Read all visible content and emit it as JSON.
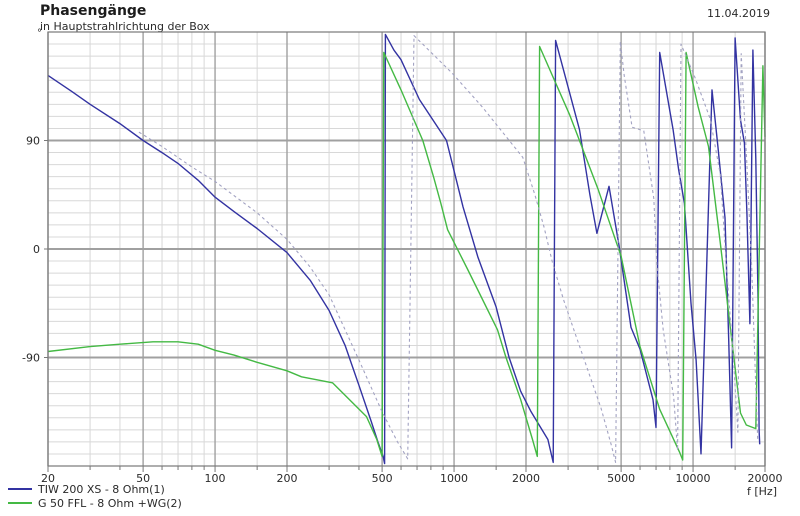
{
  "header": {
    "title": "Phasengänge",
    "subtitle": "in Hauptstrahlrichtung der Box",
    "date": "11.04.2019"
  },
  "legend": [
    {
      "label": "TIW 200 XS - 8 Ohm(1)",
      "color": "#3333a2",
      "style": "solid"
    },
    {
      "label": "G 50 FFL - 8 Ohm +WG(2)",
      "color": "#44b944",
      "style": "solid"
    }
  ],
  "colors": {
    "background": "#ffffff",
    "frame": "#787878",
    "grid_major": "#a0a0a0",
    "grid_minor": "#d8d8d8",
    "text": "#2a2a2a",
    "curve_blue": "#3333a2",
    "curve_green": "#44b944",
    "curve_dashed": "#a2a2c2"
  },
  "chart_data": {
    "type": "line",
    "title": "Phasengänge",
    "subtitle": "in Hauptstrahlrichtung der Box",
    "xlabel": "f [Hz]",
    "ylabel_unit": "°",
    "x_scale": "log",
    "xlim": [
      20,
      20000
    ],
    "ylim": [
      -180,
      180
    ],
    "grid": true,
    "y_major_lines": [
      90,
      0,
      -90
    ],
    "y_minor_step": 10,
    "y_tick_labels": [
      {
        "value": 90,
        "label": "90"
      },
      {
        "value": 0,
        "label": "0"
      },
      {
        "value": -90,
        "label": "-90"
      }
    ],
    "x_major_ticks": [
      {
        "f": 20,
        "label": "20"
      },
      {
        "f": 50,
        "label": "50"
      },
      {
        "f": 100,
        "label": "100"
      },
      {
        "f": 200,
        "label": "200"
      },
      {
        "f": 500,
        "label": "500"
      },
      {
        "f": 1000,
        "label": "1000"
      },
      {
        "f": 2000,
        "label": "2000"
      },
      {
        "f": 5000,
        "label": "5000"
      },
      {
        "f": 10000,
        "label": "10000"
      },
      {
        "f": 20000,
        "label": "20000"
      }
    ],
    "x_minor_ticks": [
      30,
      40,
      60,
      70,
      80,
      90,
      150,
      300,
      400,
      600,
      700,
      800,
      900,
      1500,
      3000,
      4000,
      6000,
      7000,
      8000,
      9000,
      15000
    ],
    "legend_position": "bottom-left",
    "series": [
      {
        "name": "TIW 200 XS - 8 Ohm(1)",
        "color": "#3333a2",
        "dash": "solid",
        "points": [
          [
            20,
            144
          ],
          [
            25,
            131
          ],
          [
            30,
            120
          ],
          [
            40,
            104
          ],
          [
            50,
            90
          ],
          [
            60,
            80
          ],
          [
            70,
            71
          ],
          [
            85,
            57
          ],
          [
            100,
            43
          ],
          [
            120,
            31
          ],
          [
            150,
            17
          ],
          [
            200,
            -3
          ],
          [
            250,
            -26
          ],
          [
            300,
            -51
          ],
          [
            350,
            -80
          ],
          [
            400,
            -113
          ],
          [
            450,
            -143
          ],
          [
            480,
            -160
          ],
          [
            505,
            -172
          ],
          [
            512,
            -178
          ],
          [
            516,
            178
          ],
          [
            560,
            165
          ],
          [
            600,
            157
          ],
          [
            716,
            124
          ],
          [
            930,
            90
          ],
          [
            1090,
            35
          ],
          [
            1260,
            -7
          ],
          [
            1500,
            -48
          ],
          [
            1700,
            -90
          ],
          [
            1900,
            -118
          ],
          [
            2100,
            -135
          ],
          [
            2470,
            -158
          ],
          [
            2600,
            -177
          ],
          [
            2660,
            173
          ],
          [
            3350,
            99
          ],
          [
            3700,
            45
          ],
          [
            3960,
            13
          ],
          [
            4450,
            52
          ],
          [
            4900,
            3
          ],
          [
            5500,
            -65
          ],
          [
            6000,
            -83
          ],
          [
            6800,
            -125
          ],
          [
            7000,
            -148
          ],
          [
            7250,
            163
          ],
          [
            8250,
            99
          ],
          [
            8700,
            66
          ],
          [
            9200,
            38
          ],
          [
            9800,
            -45
          ],
          [
            10300,
            -92
          ],
          [
            10800,
            -170
          ],
          [
            12000,
            132
          ],
          [
            12700,
            85
          ],
          [
            13600,
            26
          ],
          [
            14100,
            -75
          ],
          [
            14500,
            -165
          ],
          [
            15000,
            175
          ],
          [
            15800,
            107
          ],
          [
            16400,
            88
          ],
          [
            16800,
            30
          ],
          [
            17100,
            -25
          ],
          [
            17300,
            -62
          ],
          [
            17800,
            165
          ],
          [
            18300,
            75
          ],
          [
            18700,
            -40
          ],
          [
            18900,
            -150
          ],
          [
            19000,
            -162
          ]
        ]
      },
      {
        "name": "G 50 FFL - 8 Ohm +WG(2)",
        "color": "#44b944",
        "dash": "solid",
        "points": [
          [
            20,
            -85
          ],
          [
            30,
            -81
          ],
          [
            40,
            -79
          ],
          [
            55,
            -77
          ],
          [
            70,
            -77
          ],
          [
            85,
            -79
          ],
          [
            100,
            -84
          ],
          [
            120,
            -88
          ],
          [
            150,
            -94
          ],
          [
            200,
            -101
          ],
          [
            230,
            -106
          ],
          [
            310,
            -111
          ],
          [
            430,
            -139
          ],
          [
            475,
            -158
          ],
          [
            500,
            -172
          ],
          [
            508,
            163
          ],
          [
            600,
            132
          ],
          [
            740,
            90
          ],
          [
            820,
            60
          ],
          [
            880,
            38
          ],
          [
            940,
            16
          ],
          [
            1140,
            -17
          ],
          [
            1520,
            -67
          ],
          [
            1650,
            -90
          ],
          [
            1900,
            -125
          ],
          [
            2130,
            -158
          ],
          [
            2230,
            -172
          ],
          [
            2280,
            168
          ],
          [
            3050,
            111
          ],
          [
            4000,
            50
          ],
          [
            5000,
            -6
          ],
          [
            6000,
            -81
          ],
          [
            7250,
            -133
          ],
          [
            8800,
            -169
          ],
          [
            9050,
            -175
          ],
          [
            9350,
            163
          ],
          [
            10500,
            118
          ],
          [
            11600,
            85
          ],
          [
            13000,
            5
          ],
          [
            14700,
            -84
          ],
          [
            15800,
            -136
          ],
          [
            16700,
            -146
          ],
          [
            18300,
            -149
          ],
          [
            19600,
            152
          ],
          [
            20000,
            93
          ]
        ]
      },
      {
        "name": "dashed (no legend entry)",
        "color": "#a2a2c2",
        "dash": "dashed",
        "points": [
          [
            48,
            97
          ],
          [
            60,
            85
          ],
          [
            80,
            68
          ],
          [
            100,
            56
          ],
          [
            150,
            30
          ],
          [
            200,
            8
          ],
          [
            250,
            -15
          ],
          [
            300,
            -38
          ],
          [
            400,
            -92
          ],
          [
            500,
            -135
          ],
          [
            580,
            -160
          ],
          [
            640,
            -174
          ],
          [
            680,
            177
          ],
          [
            980,
            146
          ],
          [
            1310,
            118
          ],
          [
            1940,
            76
          ],
          [
            2180,
            45
          ],
          [
            2380,
            18
          ],
          [
            2580,
            -11
          ],
          [
            2870,
            -42
          ],
          [
            3210,
            -70
          ],
          [
            3740,
            -108
          ],
          [
            4120,
            -132
          ],
          [
            4540,
            -162
          ],
          [
            4740,
            -177
          ],
          [
            4960,
            172
          ],
          [
            5150,
            144
          ],
          [
            5560,
            101
          ],
          [
            6220,
            98
          ],
          [
            6850,
            42
          ],
          [
            7050,
            -12
          ],
          [
            7500,
            -67
          ],
          [
            8300,
            -123
          ],
          [
            8620,
            -167
          ],
          [
            8900,
            170
          ],
          [
            10200,
            142
          ],
          [
            11800,
            108
          ],
          [
            13000,
            62
          ],
          [
            13800,
            -15
          ],
          [
            14800,
            -95
          ],
          [
            15400,
            -152
          ],
          [
            15900,
            162
          ],
          [
            16800,
            70
          ],
          [
            17600,
            -15
          ],
          [
            18300,
            -115
          ],
          [
            18650,
            -158
          ]
        ]
      }
    ]
  }
}
